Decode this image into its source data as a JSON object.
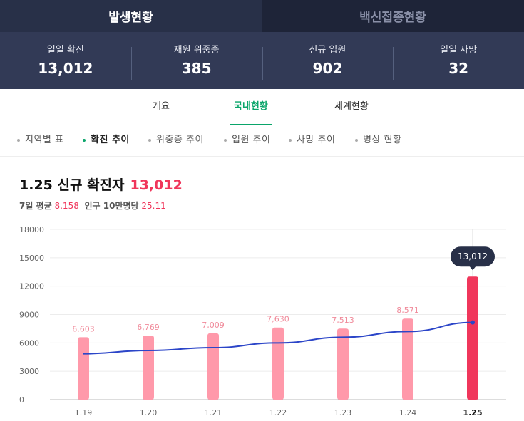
{
  "tabs": [
    "발생현황",
    "백신접종현황"
  ],
  "stats": [
    {
      "label": "일일 확진",
      "value": "13,012"
    },
    {
      "label": "재원 위중증",
      "value": "385"
    },
    {
      "label": "신규 입원",
      "value": "902"
    },
    {
      "label": "일일 사망",
      "value": "32"
    }
  ],
  "subnav": [
    "개요",
    "국내현황",
    "세계현황"
  ],
  "filters": [
    "지역별 표",
    "확진 추이",
    "위중증 추이",
    "입원 추이",
    "사망 추이",
    "병상 현황"
  ],
  "headline": {
    "title": "1.25 신규 확진자",
    "value": "13,012"
  },
  "subline": {
    "avg_label": "7일 평균",
    "avg_value": "8,158",
    "pop_label": "인구 10만명당",
    "pop_value": "25.11"
  },
  "colors": {
    "accent_green": "#0aa56a",
    "bar": "#ff99aa",
    "bar_highlight": "#f0365b",
    "line": "#2b45c8",
    "dark": "#283048"
  },
  "chart_data": {
    "type": "bar",
    "categories": [
      "1.19",
      "1.20",
      "1.21",
      "1.22",
      "1.23",
      "1.24",
      "1.25"
    ],
    "series": [
      {
        "values": [
          6603,
          6769,
          7009,
          7630,
          7513,
          8571,
          13012
        ]
      },
      {
        "type": "line",
        "values": [
          4850,
          5200,
          5500,
          6000,
          6600,
          7200,
          8158
        ]
      }
    ],
    "data_labels": [
      "6,603",
      "6,769",
      "7,009",
      "7,630",
      "7,513",
      "8,571",
      "13,012"
    ],
    "yticks": [
      "0",
      "3000",
      "6000",
      "9000",
      "12000",
      "15000",
      "18000"
    ],
    "ylim": [
      0,
      18000
    ],
    "grid": true
  }
}
